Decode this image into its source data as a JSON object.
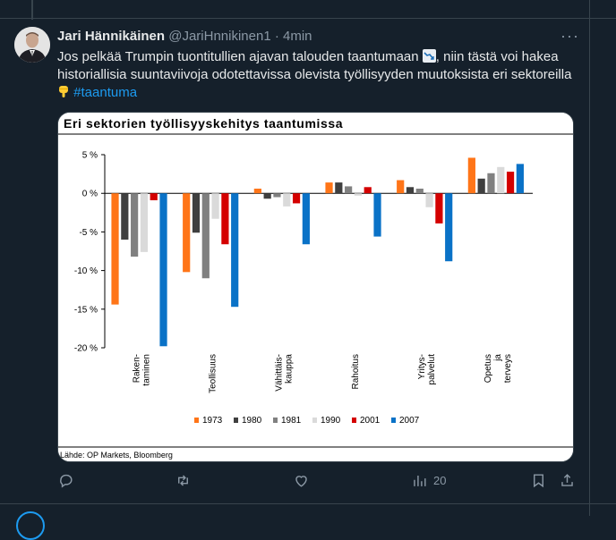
{
  "tweet": {
    "author_name": "Jari Hännikäinen",
    "handle": "@JariHnnikinen1",
    "separator": "·",
    "time": "4min",
    "text_part1": "Jos pelkää Trumpin tuontitullien ajavan talouden taantumaan ",
    "text_part2": ", niin tästä voi hakea historiallisia suuntaviivoja odotettavissa olevista työllisyyden muutoksista eri sektoreilla ",
    "hashtag": "#taantuma",
    "emoji_1": "chart-decreasing-icon",
    "emoji_2": "backhand-index-pointing-down-icon"
  },
  "actions": {
    "reply_count": "",
    "retweet_count": "",
    "like_count": "",
    "views_count": "20"
  },
  "colors": {
    "background": "#15202b",
    "text": "#e7e9ea",
    "muted": "#8b98a5",
    "link": "#1d9bf0"
  },
  "chart_data": {
    "type": "bar",
    "title": "Eri sektorien työllisyyskehitys taantumissa",
    "source": "Lähde: OP Markets, Bloomberg",
    "ylim": [
      -20,
      5
    ],
    "yticks": [
      5,
      0,
      -5,
      -10,
      -15,
      -20
    ],
    "ytick_labels": [
      "5 %",
      "0 %",
      "-5 %",
      "-10 %",
      "-15 %",
      "-20 %"
    ],
    "categories": [
      [
        "Raken-",
        "taminen"
      ],
      [
        "Teollisuus"
      ],
      [
        "Vähittäis-",
        "kauppa"
      ],
      [
        "Rahoitus"
      ],
      [
        "Yritys-",
        "palvelut"
      ],
      [
        "Opetus",
        "ja",
        "terveys"
      ]
    ],
    "legend_position": "bottom",
    "series": [
      {
        "name": "1973",
        "color": "#ff7518",
        "values": [
          -14.4,
          -10.2,
          0.6,
          1.4,
          1.7,
          4.6
        ]
      },
      {
        "name": "1980",
        "color": "#3f3f3f",
        "values": [
          -6.0,
          -5.1,
          -0.7,
          1.4,
          0.8,
          1.9
        ]
      },
      {
        "name": "1981",
        "color": "#808080",
        "values": [
          -8.2,
          -11.0,
          -0.5,
          0.9,
          0.6,
          2.6
        ]
      },
      {
        "name": "1990",
        "color": "#dadada",
        "values": [
          -7.6,
          -3.3,
          -1.7,
          -0.3,
          -1.8,
          3.4
        ]
      },
      {
        "name": "2001",
        "color": "#d40000",
        "values": [
          -0.9,
          -6.6,
          -1.3,
          0.8,
          -3.9,
          2.8
        ]
      },
      {
        "name": "2007",
        "color": "#0a72c7",
        "values": [
          -19.8,
          -14.7,
          -6.6,
          -5.6,
          -8.8,
          3.8
        ]
      }
    ]
  }
}
